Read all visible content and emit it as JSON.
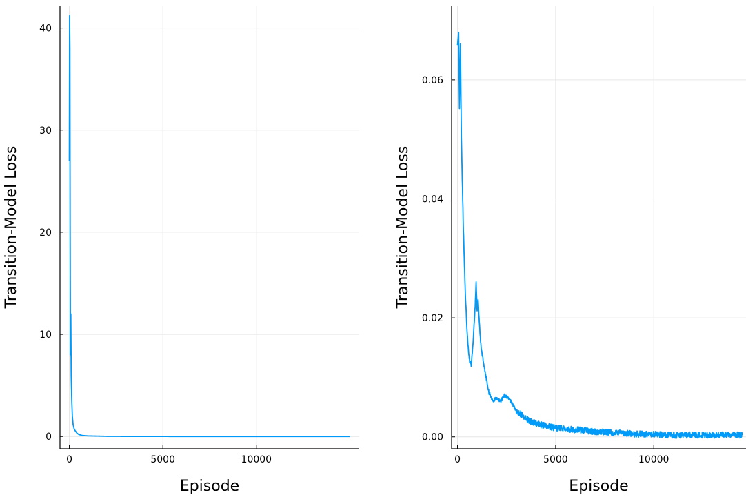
{
  "chart_data": [
    {
      "type": "line",
      "xlabel": "Episode",
      "ylabel": "Transition-Model Loss",
      "xlim": [
        -500,
        15500
      ],
      "ylim": [
        -1.2,
        42.2
      ],
      "xticks": [
        0,
        5000,
        10000
      ],
      "xtick_labels": [
        "0",
        "5000",
        "10000"
      ],
      "yticks": [
        0,
        10,
        20,
        30,
        40
      ],
      "ytick_labels": [
        "0",
        "10",
        "20",
        "30",
        "40"
      ],
      "grid": true,
      "legend": "none",
      "line_color": "#009af9",
      "series": [
        {
          "x": [
            0,
            15,
            30,
            45,
            60,
            80,
            100,
            130,
            160,
            200,
            250,
            300,
            400,
            500,
            700,
            1000,
            1500,
            2000,
            3000,
            5000,
            8000,
            10000,
            12000,
            13000,
            15000
          ],
          "y": [
            27,
            41.2,
            38,
            20,
            8.0,
            12,
            6,
            3.5,
            2.0,
            1.2,
            0.8,
            0.6,
            0.35,
            0.2,
            0.1,
            0.06,
            0.04,
            0.02,
            0.01,
            0.004,
            0.002,
            0.001,
            0.001,
            0.001,
            0.001
          ]
        }
      ]
    },
    {
      "type": "line",
      "xlabel": "Episode",
      "ylabel": "Transition-Model Loss",
      "xlim": [
        -300,
        14700
      ],
      "ylim": [
        -0.002,
        0.0725
      ],
      "xticks": [
        0,
        5000,
        10000
      ],
      "xtick_labels": [
        "0",
        "5000",
        "10000"
      ],
      "yticks": [
        0.0,
        0.02,
        0.04,
        0.06
      ],
      "ytick_labels": [
        "0.00",
        "0.02",
        "0.04",
        "0.06"
      ],
      "grid": true,
      "legend": "none",
      "line_color": "#009af9",
      "series": [
        {
          "x": [
            0,
            60,
            100,
            150,
            200,
            300,
            400,
            500,
            600,
            700,
            800,
            900,
            950,
            1000,
            1050,
            1100,
            1200,
            1400,
            1600,
            1800,
            2000,
            2200,
            2400,
            2600,
            3000,
            3500,
            4000,
            5000,
            6000,
            7000,
            8000,
            9000,
            10000,
            11000,
            12000,
            13000,
            14000,
            14500
          ],
          "y": [
            0.066,
            0.068,
            0.055,
            0.066,
            0.05,
            0.035,
            0.024,
            0.017,
            0.013,
            0.012,
            0.016,
            0.022,
            0.026,
            0.021,
            0.023,
            0.02,
            0.015,
            0.011,
            0.0075,
            0.006,
            0.0065,
            0.006,
            0.007,
            0.0065,
            0.0045,
            0.003,
            0.0022,
            0.0015,
            0.0012,
            0.0009,
            0.0007,
            0.0005,
            0.0004,
            0.0003,
            0.0003,
            0.0003,
            0.0003,
            0.0003
          ]
        }
      ]
    }
  ]
}
